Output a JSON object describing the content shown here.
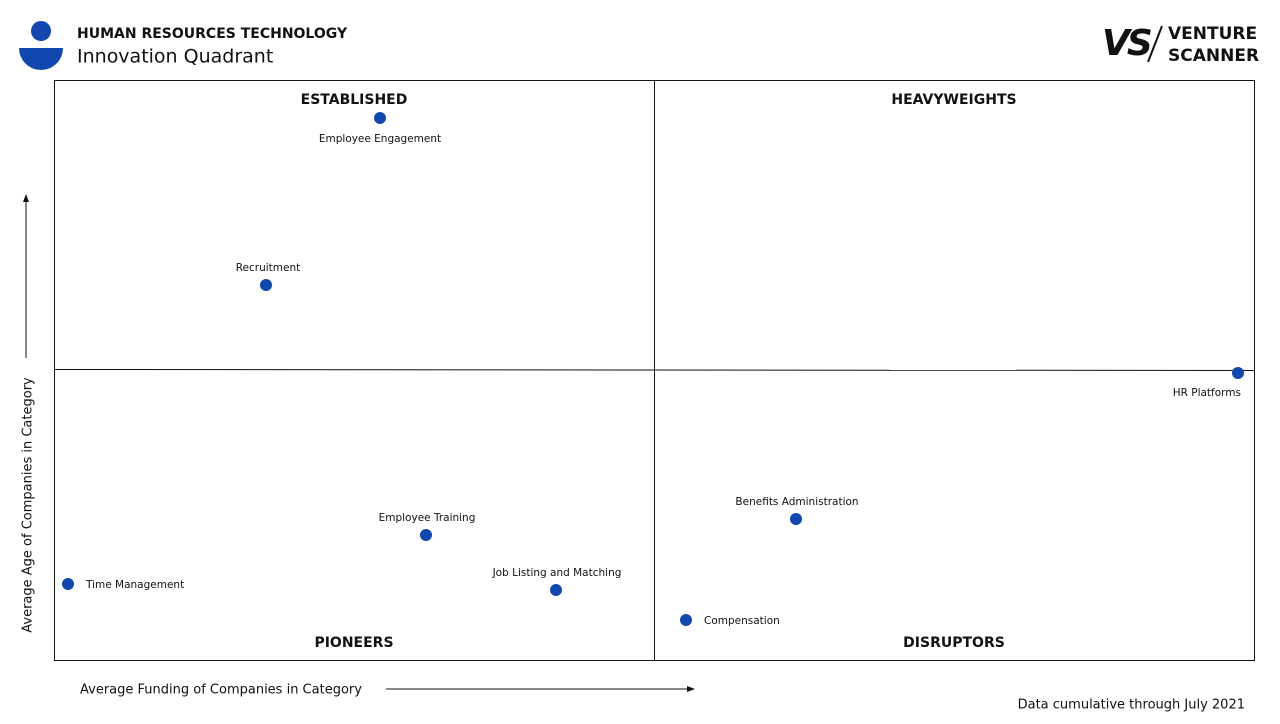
{
  "header": {
    "title": "HUMAN RESOURCES TECHNOLOGY",
    "subtitle": "Innovation Quadrant"
  },
  "logo": {
    "lines": [
      "VENTURE",
      "SCANNER"
    ]
  },
  "quadrants": [
    "ESTABLISHED",
    "HEAVYWEIGHTS",
    "PIONEERS",
    "DISRUPTORS"
  ],
  "points": [
    "Employee Engagement",
    "Recruitment",
    "HR Platforms",
    "Benefits Administration",
    "Employee Training",
    "Time Management",
    "Job Listing and Matching",
    "Compensation"
  ],
  "x_axis_label": "Average Funding of Companies in Category",
  "y_axis_label": "Average Age of Companies in Category",
  "footnote": "Data cumulative through July 2021"
}
